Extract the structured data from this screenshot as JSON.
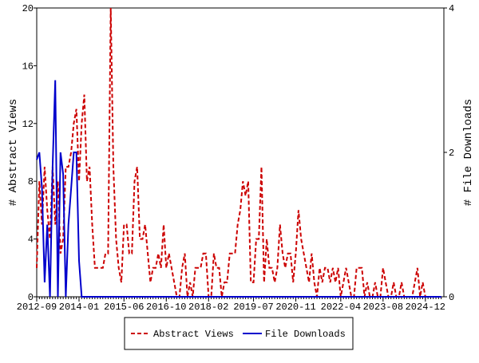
{
  "chart_data": {
    "type": "line",
    "x": [
      "2012-09",
      "2012-10",
      "2012-11",
      "2012-12",
      "2013-01",
      "2013-02",
      "2013-03",
      "2013-04",
      "2013-05",
      "2013-06",
      "2013-07",
      "2013-08",
      "2013-09",
      "2013-10",
      "2013-11",
      "2013-12",
      "2014-01",
      "2014-02",
      "2014-03",
      "2014-04",
      "2014-05",
      "2014-06",
      "2014-07",
      "2014-08",
      "2014-09",
      "2014-10",
      "2014-11",
      "2014-12",
      "2015-01",
      "2015-02",
      "2015-03",
      "2015-04",
      "2015-05",
      "2015-06",
      "2015-07",
      "2015-08",
      "2015-09",
      "2015-10",
      "2015-11",
      "2015-12",
      "2016-01",
      "2016-02",
      "2016-03",
      "2016-04",
      "2016-05",
      "2016-06",
      "2016-07",
      "2016-08",
      "2016-09",
      "2016-10",
      "2016-11",
      "2016-12",
      "2017-01",
      "2017-02",
      "2017-03",
      "2017-04",
      "2017-05",
      "2017-06",
      "2017-07",
      "2017-08",
      "2017-09",
      "2017-10",
      "2017-11",
      "2017-12",
      "2018-01",
      "2018-02",
      "2018-03",
      "2018-04",
      "2018-05",
      "2018-06",
      "2018-07",
      "2018-08",
      "2018-09",
      "2018-10",
      "2018-11",
      "2018-12",
      "2019-01",
      "2019-02",
      "2019-03",
      "2019-04",
      "2019-05",
      "2019-06",
      "2019-07",
      "2019-08",
      "2019-09",
      "2019-10",
      "2019-11",
      "2019-12",
      "2020-01",
      "2020-02",
      "2020-03",
      "2020-04",
      "2020-05",
      "2020-06",
      "2020-07",
      "2020-08",
      "2020-09",
      "2020-10",
      "2020-11",
      "2020-12",
      "2021-01",
      "2021-02",
      "2021-03",
      "2021-04",
      "2021-05",
      "2021-06",
      "2021-07",
      "2021-08",
      "2021-09",
      "2021-10",
      "2021-11",
      "2021-12",
      "2022-01",
      "2022-02",
      "2022-03",
      "2022-04",
      "2022-05",
      "2022-06",
      "2022-07",
      "2022-08",
      "2022-09",
      "2022-10",
      "2022-11",
      "2022-12",
      "2023-01",
      "2023-02",
      "2023-03",
      "2023-04",
      "2023-05",
      "2023-06",
      "2023-07",
      "2023-08",
      "2023-09",
      "2023-10",
      "2023-11",
      "2023-12",
      "2024-01",
      "2024-02",
      "2024-03",
      "2024-04",
      "2024-05",
      "2024-06",
      "2024-07",
      "2024-08",
      "2024-09",
      "2024-10",
      "2024-11",
      "2024-12",
      "2025-01",
      "2025-02",
      "2025-03",
      "2025-04",
      "2025-05",
      "2025-06"
    ],
    "series": [
      {
        "name": "Abstract Views",
        "color": "#cc0000",
        "dash": true,
        "axis": "y",
        "values": [
          2,
          8,
          5,
          9,
          6,
          4,
          9,
          5,
          8,
          3,
          4,
          9,
          9,
          10,
          12,
          13,
          8,
          12,
          14,
          8,
          9,
          5,
          2,
          2,
          2,
          2,
          3,
          3,
          20,
          9,
          4,
          2,
          1,
          5,
          5,
          3,
          3,
          8,
          9,
          4,
          4,
          5,
          3,
          1,
          2,
          2,
          3,
          2,
          5,
          2,
          3,
          2,
          1,
          0,
          0,
          2,
          3,
          0,
          1,
          0,
          2,
          2,
          2,
          3,
          3,
          0,
          0,
          3,
          2,
          2,
          0,
          1,
          1,
          3,
          3,
          3,
          5,
          6,
          8,
          7,
          8,
          1,
          1,
          4,
          4,
          9,
          1,
          4,
          2,
          2,
          1,
          2,
          5,
          3,
          2,
          3,
          3,
          1,
          3,
          6,
          4,
          3,
          2,
          1,
          3,
          1,
          0,
          2,
          1,
          2,
          2,
          1,
          2,
          1,
          2,
          0,
          1,
          2,
          1,
          0,
          0,
          2,
          2,
          2,
          0,
          1,
          0,
          0,
          1,
          0,
          0,
          2,
          1,
          0,
          0,
          1,
          0,
          0,
          1,
          0,
          0,
          0,
          0,
          1,
          2,
          0,
          1,
          0,
          0,
          0,
          0,
          0,
          0,
          0
        ]
      },
      {
        "name": "File Downloads",
        "color": "#0000cc",
        "dash": false,
        "axis": "y2",
        "values": [
          1.9,
          2,
          1.5,
          0.2,
          1,
          0,
          1.8,
          3,
          0,
          2,
          1.7,
          0,
          1,
          1.5,
          2,
          2,
          0.5,
          0,
          0,
          0,
          0,
          0,
          0,
          0,
          0,
          0,
          0,
          0,
          0,
          0,
          0,
          0,
          0,
          0,
          0,
          0,
          0,
          0,
          0,
          0,
          0,
          0,
          0,
          0,
          0,
          0,
          0,
          0,
          0,
          0,
          0,
          0,
          0,
          0,
          0,
          0,
          0,
          0,
          0,
          0,
          0,
          0,
          0,
          0,
          0,
          0,
          0,
          0,
          0,
          0,
          0,
          0,
          0,
          0,
          0,
          0,
          0,
          0,
          0,
          0,
          0,
          0,
          0,
          0,
          0,
          0,
          0,
          0,
          0,
          0,
          0,
          0,
          0,
          0,
          0,
          0,
          0,
          0,
          0,
          0,
          0,
          0,
          0,
          0,
          0,
          0,
          0,
          0,
          0,
          0,
          0,
          0,
          0,
          0,
          0,
          0,
          0,
          0,
          0,
          0,
          0,
          0,
          0,
          0,
          0,
          0,
          0,
          0,
          0,
          0,
          0,
          0,
          0,
          0,
          0,
          0,
          0,
          0,
          0,
          0,
          0,
          0,
          0,
          0,
          0,
          0,
          0,
          0,
          0,
          0,
          0,
          0,
          0,
          0
        ]
      }
    ],
    "xlim": [
      "2012-09",
      "2025-07"
    ],
    "xticks": [
      "2012-09",
      "2014-01",
      "2015-06",
      "2016-10",
      "2018-02",
      "2019-07",
      "2020-11",
      "2022-04",
      "2023-08",
      "2024-12"
    ],
    "ylim": [
      0,
      20
    ],
    "yticks": [
      0,
      4,
      8,
      12,
      16,
      20
    ],
    "y2lim": [
      0,
      4
    ],
    "y2ticks": [
      0,
      2,
      4
    ],
    "ylabel": "# Abstract Views",
    "y2label": "# File Downloads",
    "legend": "bottom"
  }
}
